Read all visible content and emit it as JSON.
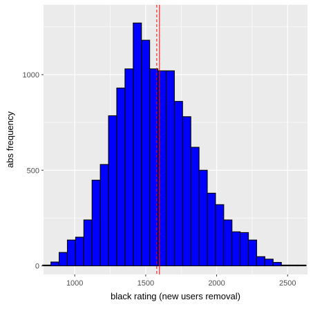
{
  "chart_data": {
    "type": "bar",
    "subtype": "histogram",
    "xlabel": "black rating (new users removal)",
    "ylabel": "abs frequency",
    "xlim": [
      780,
      2640
    ],
    "ylim": [
      -45,
      1365
    ],
    "xticks": [
      1000,
      1500,
      2000,
      2500
    ],
    "yticks": [
      0,
      500,
      1000
    ],
    "grid": true,
    "bin_width": 58,
    "bins": [
      {
        "start": 774,
        "end": 832,
        "count": 4
      },
      {
        "start": 832,
        "end": 890,
        "count": 20
      },
      {
        "start": 890,
        "end": 948,
        "count": 70
      },
      {
        "start": 948,
        "end": 1006,
        "count": 135
      },
      {
        "start": 1006,
        "end": 1064,
        "count": 150
      },
      {
        "start": 1064,
        "end": 1122,
        "count": 240
      },
      {
        "start": 1122,
        "end": 1180,
        "count": 448
      },
      {
        "start": 1180,
        "end": 1238,
        "count": 530
      },
      {
        "start": 1238,
        "end": 1296,
        "count": 785
      },
      {
        "start": 1296,
        "end": 1354,
        "count": 930
      },
      {
        "start": 1354,
        "end": 1412,
        "count": 1030
      },
      {
        "start": 1412,
        "end": 1470,
        "count": 1270
      },
      {
        "start": 1470,
        "end": 1528,
        "count": 1180
      },
      {
        "start": 1528,
        "end": 1586,
        "count": 1030
      },
      {
        "start": 1586,
        "end": 1644,
        "count": 1020
      },
      {
        "start": 1644,
        "end": 1702,
        "count": 1020
      },
      {
        "start": 1702,
        "end": 1760,
        "count": 860
      },
      {
        "start": 1760,
        "end": 1818,
        "count": 780
      },
      {
        "start": 1818,
        "end": 1876,
        "count": 620
      },
      {
        "start": 1876,
        "end": 1934,
        "count": 500
      },
      {
        "start": 1934,
        "end": 1992,
        "count": 380
      },
      {
        "start": 1992,
        "end": 2050,
        "count": 320
      },
      {
        "start": 2050,
        "end": 2108,
        "count": 240
      },
      {
        "start": 2108,
        "end": 2166,
        "count": 178
      },
      {
        "start": 2166,
        "end": 2224,
        "count": 174
      },
      {
        "start": 2224,
        "end": 2282,
        "count": 135
      },
      {
        "start": 2282,
        "end": 2340,
        "count": 48
      },
      {
        "start": 2340,
        "end": 2398,
        "count": 35
      },
      {
        "start": 2398,
        "end": 2456,
        "count": 18
      },
      {
        "start": 2456,
        "end": 2514,
        "count": 4
      },
      {
        "start": 2514,
        "end": 2572,
        "count": 4
      },
      {
        "start": 2572,
        "end": 2630,
        "count": 4
      }
    ],
    "reference_lines": [
      {
        "x": 1578,
        "style": "dashed",
        "color": "#ff0000"
      },
      {
        "x": 1597,
        "style": "solid",
        "color": "#ff0000"
      }
    ],
    "colors": {
      "bar_fill": "#0000ff",
      "bar_stroke": "#000000",
      "panel": "#ebebeb",
      "grid": "#ffffff",
      "reference": "#ff0000"
    }
  }
}
